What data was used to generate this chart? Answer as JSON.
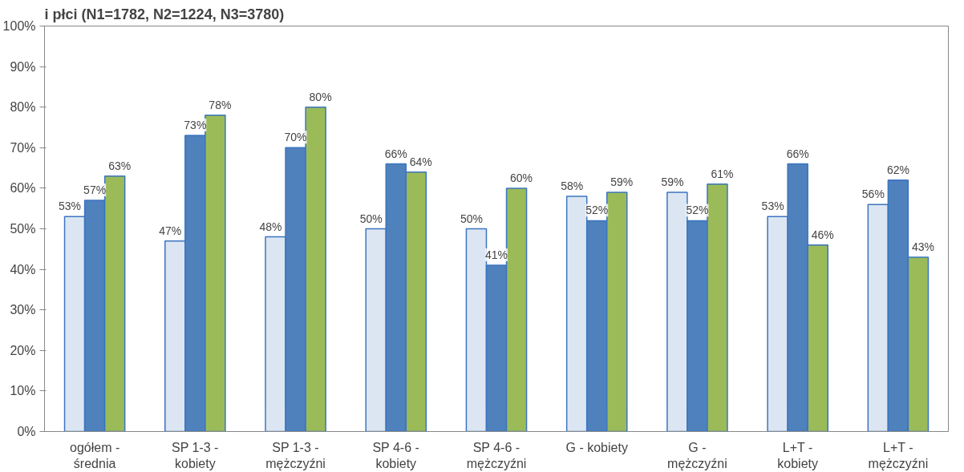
{
  "chart_data": {
    "type": "bar",
    "title": "i płci (N1=1782, N2=1224, N3=3780)",
    "categories": [
      "ogółem -\nśrednia",
      "SP 1-3 -\nkobiety",
      "SP 1-3 -\nmężczyźni",
      "SP 4-6 -\nkobiety",
      "SP 4-6 -\nmężczyźni",
      "G - kobiety",
      "G -\nmężczyźni",
      "L+T -\nkobiety",
      "L+T -\nmężczyźni"
    ],
    "series": [
      {
        "color": "#dce6f2",
        "values": [
          53,
          47,
          48,
          50,
          50,
          58,
          59,
          53,
          56
        ],
        "value_labels": [
          "53%",
          "47%",
          "48%",
          "50%",
          "50%",
          "58%",
          "59%",
          "53%",
          "56%"
        ]
      },
      {
        "color": "#4f81bd",
        "values": [
          57,
          73,
          70,
          66,
          41,
          52,
          52,
          66,
          62
        ],
        "value_labels": [
          "57%",
          "73%",
          "70%",
          "66%",
          "41%",
          "52%",
          "52%",
          "66%",
          "62%"
        ]
      },
      {
        "color": "#9bbb59",
        "values": [
          63,
          78,
          80,
          64,
          60,
          59,
          61,
          46,
          43
        ],
        "value_labels": [
          "63%",
          "78%",
          "80%",
          "64%",
          "60%",
          "59%",
          "61%",
          "46%",
          "43%"
        ]
      }
    ],
    "ylim": [
      0,
      100
    ],
    "yticks": [
      {
        "value": 0,
        "label": "0%"
      },
      {
        "value": 10,
        "label": "10%"
      },
      {
        "value": 20,
        "label": "20%"
      },
      {
        "value": 30,
        "label": "30%"
      },
      {
        "value": 40,
        "label": "40%"
      },
      {
        "value": 50,
        "label": "50%"
      },
      {
        "value": 60,
        "label": "60%"
      },
      {
        "value": 70,
        "label": "70%"
      },
      {
        "value": 80,
        "label": "80%"
      },
      {
        "value": 90,
        "label": "90%"
      },
      {
        "value": 100,
        "label": "100%"
      }
    ],
    "grid": false
  }
}
